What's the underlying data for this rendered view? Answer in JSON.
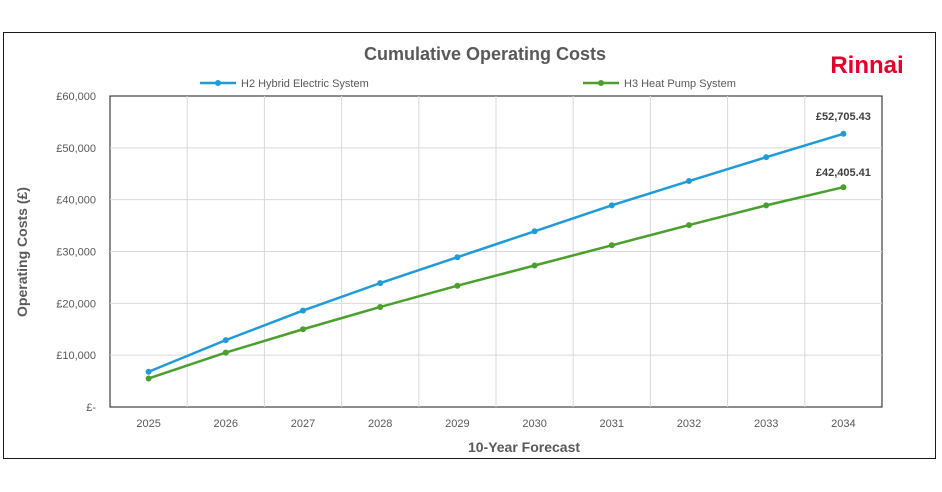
{
  "brand": {
    "name": "Rinnai",
    "color": "#e4002b"
  },
  "chart_data": {
    "type": "line",
    "title": "Cumulative Operating Costs",
    "xlabel": "10-Year Forecast",
    "ylabel": "Operating Costs (£)",
    "categories": [
      "2025",
      "2026",
      "2027",
      "2028",
      "2029",
      "2030",
      "2031",
      "2032",
      "2033",
      "2034"
    ],
    "ylim": [
      0,
      60000
    ],
    "yticks": [
      0,
      10000,
      20000,
      30000,
      40000,
      50000,
      60000
    ],
    "ytick_labels": [
      "£-",
      "£10,000",
      "£20,000",
      "£30,000",
      "£40,000",
      "£50,000",
      "£60,000"
    ],
    "grid": true,
    "legend_position": "top",
    "series": [
      {
        "name": "H2 Hybrid Electric System",
        "color": "#1f9bd7",
        "values": [
          6800,
          12900,
          18600,
          23900,
          28900,
          33900,
          38900,
          43600,
          48200,
          52705.43
        ],
        "end_label": "£52,705.43"
      },
      {
        "name": "H3 Heat Pump System",
        "color": "#4aa02c",
        "values": [
          5500,
          10500,
          15000,
          19300,
          23400,
          27300,
          31200,
          35100,
          38900,
          42405.41
        ],
        "end_label": "£42,405.41"
      }
    ]
  }
}
